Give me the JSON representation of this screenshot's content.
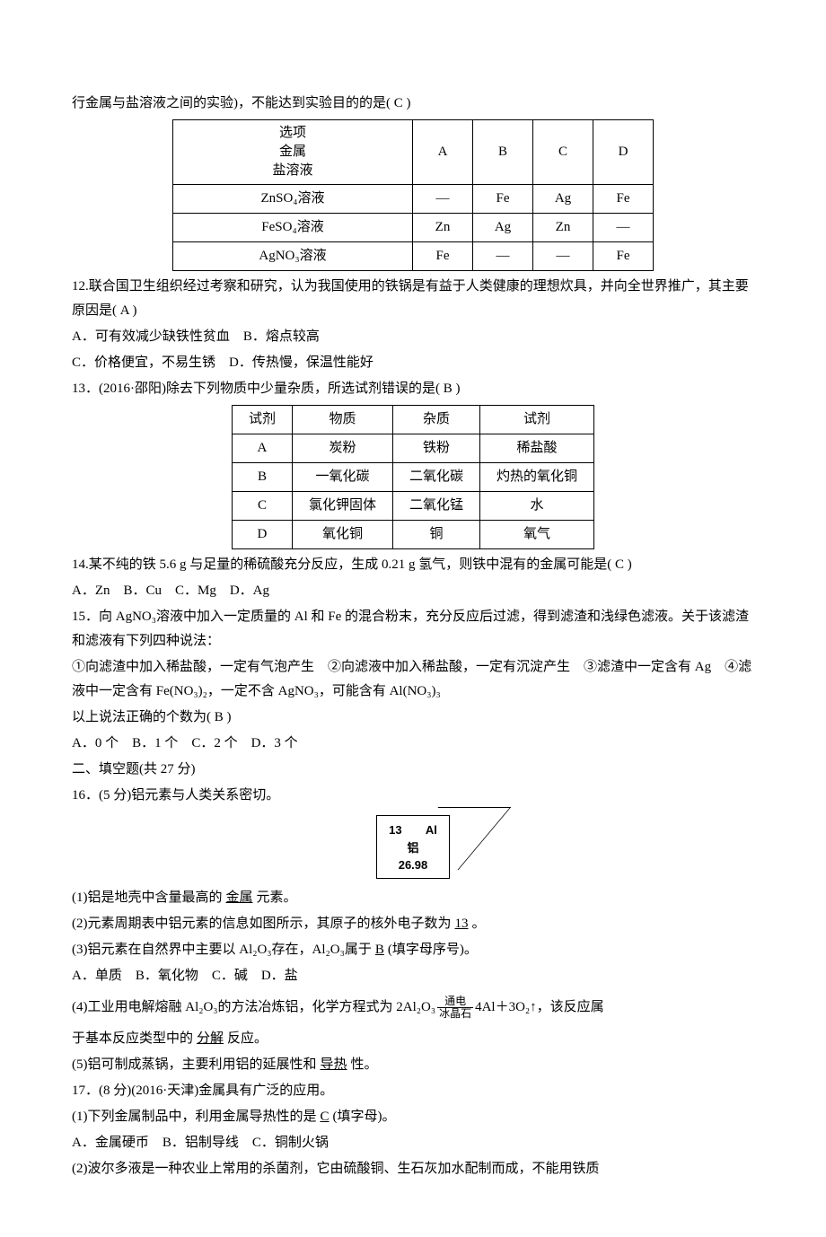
{
  "intro11": "行金属与盐溶液之间的实验)，不能达到实验目的的是( C )",
  "table1": {
    "header": [
      "选项\n金属\n盐溶液",
      "A",
      "B",
      "C",
      "D"
    ],
    "rows": [
      [
        "ZnSO₄溶液",
        "—",
        "Fe",
        "Ag",
        "Fe"
      ],
      [
        "FeSO₄溶液",
        "Zn",
        "Ag",
        "Zn",
        "—"
      ],
      [
        "AgNO₃溶液",
        "Fe",
        "—",
        "—",
        "Fe"
      ]
    ]
  },
  "q12": {
    "num": "12.",
    "stem": "联合国卫生组织经过考察和研究，认为我国使用的铁锅是有益于人类健康的理想炊具，并向全世界推广，其主要原因是( A )",
    "optA": "A．可有效减少缺铁性贫血",
    "optB": "B．熔点较高",
    "optC": "C．价格便宜，不易生锈",
    "optD": "D．传热慢，保温性能好"
  },
  "q13": {
    "num": "13．",
    "stem": "(2016·邵阳)除去下列物质中少量杂质，所选试剂错误的是( B )",
    "header": [
      "试剂",
      "物质",
      "杂质",
      "试剂"
    ],
    "rows": [
      [
        "A",
        "炭粉",
        "铁粉",
        "稀盐酸"
      ],
      [
        "B",
        "一氧化碳",
        "二氧化碳",
        "灼热的氧化铜"
      ],
      [
        "C",
        "氯化钾固体",
        "二氧化锰",
        "水"
      ],
      [
        "D",
        "氧化铜",
        "铜",
        "氧气"
      ]
    ]
  },
  "q14": {
    "num": "14.",
    "stem": "某不纯的铁 5.6 g 与足量的稀硫酸充分反应，生成 0.21 g 氢气，则铁中混有的金属可能是( C )",
    "opts": "A．Zn　B．Cu　C．Mg　D．Ag"
  },
  "q15": {
    "num": "15．",
    "stem1": "向 AgNO₃溶液中加入一定质量的 Al 和 Fe 的混合粉末，充分反应后过滤，得到滤渣和浅绿色滤液。关于该滤渣和滤液有下列四种说法：",
    "stem2": "①向滤渣中加入稀盐酸，一定有气泡产生　②向滤液中加入稀盐酸，一定有沉淀产生　③滤渣中一定含有 Ag　④滤液中一定含有 Fe(NO₃)₂，一定不含 AgNO₃，可能含有 Al(NO₃)₃",
    "stem3": "以上说法正确的个数为( B )",
    "opts": "A．0 个　B．1 个　C．2 个　D．3 个"
  },
  "sec2": "二、填空题(共 27 分)",
  "q16": {
    "num": "16．",
    "stem": "(5 分)铝元素与人类关系密切。",
    "box": {
      "num": "13",
      "sym": "Al",
      "name": "铝",
      "mass": "26.98"
    },
    "p1a": "(1)铝是地壳中含量最高的",
    "p1b": "金属",
    "p1c": "元素。",
    "p2a": "(2)元素周期表中铝元素的信息如图所示，其原子的核外电子数为",
    "p2b": "13",
    "p2c": "。",
    "p3a": "(3)铝元素在自然界中主要以 Al₂O₃存在，Al₂O₃属于",
    "p3b": "B",
    "p3c": "(填字母序号)。",
    "p3opts": "A．单质　B．氧化物　C．碱　D．盐",
    "p4a": "(4)工业用电解熔融 Al₂O₃的方法冶炼铝，化学方程式为 2Al₂O₃",
    "p4top": "通电",
    "p4bot": "冰晶石",
    "p4b": "4Al＋3O₂↑，该反应属",
    "p4c": "于基本反应类型中的",
    "p4d": "分解",
    "p4e": "反应。",
    "p5a": "(5)铝可制成蒸锅，主要利用铝的延展性和",
    "p5b": "导热",
    "p5c": "性。"
  },
  "q17": {
    "num": "17．",
    "stem": "(8 分)(2016·天津)金属具有广泛的应用。",
    "p1a": "(1)下列金属制品中，利用金属导热性的是",
    "p1b": "C",
    "p1c": "(填字母)。",
    "p1opts": "A．金属硬币　B．铝制导线　C．铜制火锅",
    "p2": "(2)波尔多液是一种农业上常用的杀菌剂，它由硫酸铜、生石灰加水配制而成，不能用铁质"
  }
}
